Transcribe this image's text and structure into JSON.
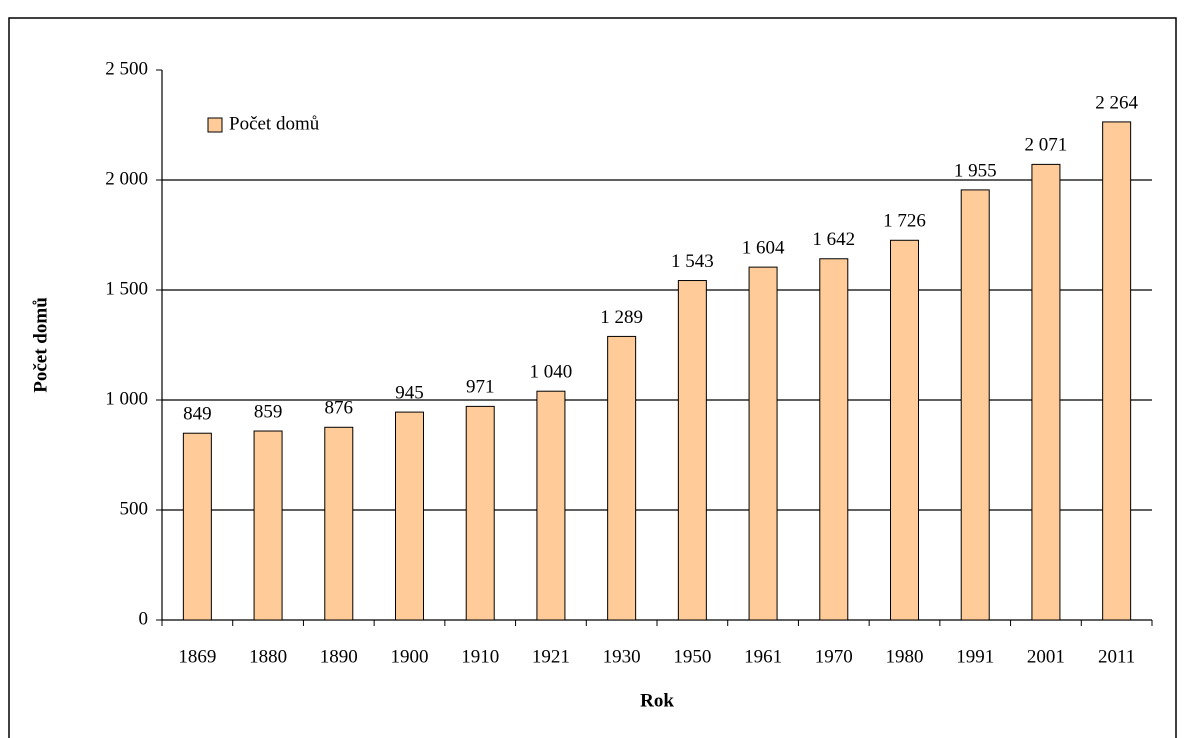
{
  "chart_data": {
    "type": "bar",
    "x_label": "Rok",
    "y_label": "Počet domů",
    "legend": "top-left",
    "categories": [
      "1869",
      "1880",
      "1890",
      "1900",
      "1910",
      "1921",
      "1930",
      "1950",
      "1961",
      "1970",
      "1980",
      "1991",
      "2001",
      "2011"
    ],
    "series": [
      {
        "name": "Počet domů",
        "color": "#ffcc99",
        "values": [
          849,
          859,
          876,
          945,
          971,
          1040,
          1289,
          1543,
          1604,
          1642,
          1726,
          1955,
          2071,
          2264
        ],
        "value_labels": [
          "849",
          "859",
          "876",
          "945",
          "971",
          "1 040",
          "1 289",
          "1 543",
          "1 604",
          "1 642",
          "1 726",
          "1 955",
          "2 071",
          "2 264"
        ]
      }
    ],
    "ylim": [
      0,
      2500
    ],
    "yticks": [
      0,
      500,
      {
        "value": 1000,
        "label": "1 000"
      },
      {
        "value": 1500,
        "label": "1 500"
      },
      {
        "value": 2000,
        "label": "2 000"
      },
      {
        "value": 2500,
        "label": "2 500"
      }
    ],
    "grid": true
  }
}
